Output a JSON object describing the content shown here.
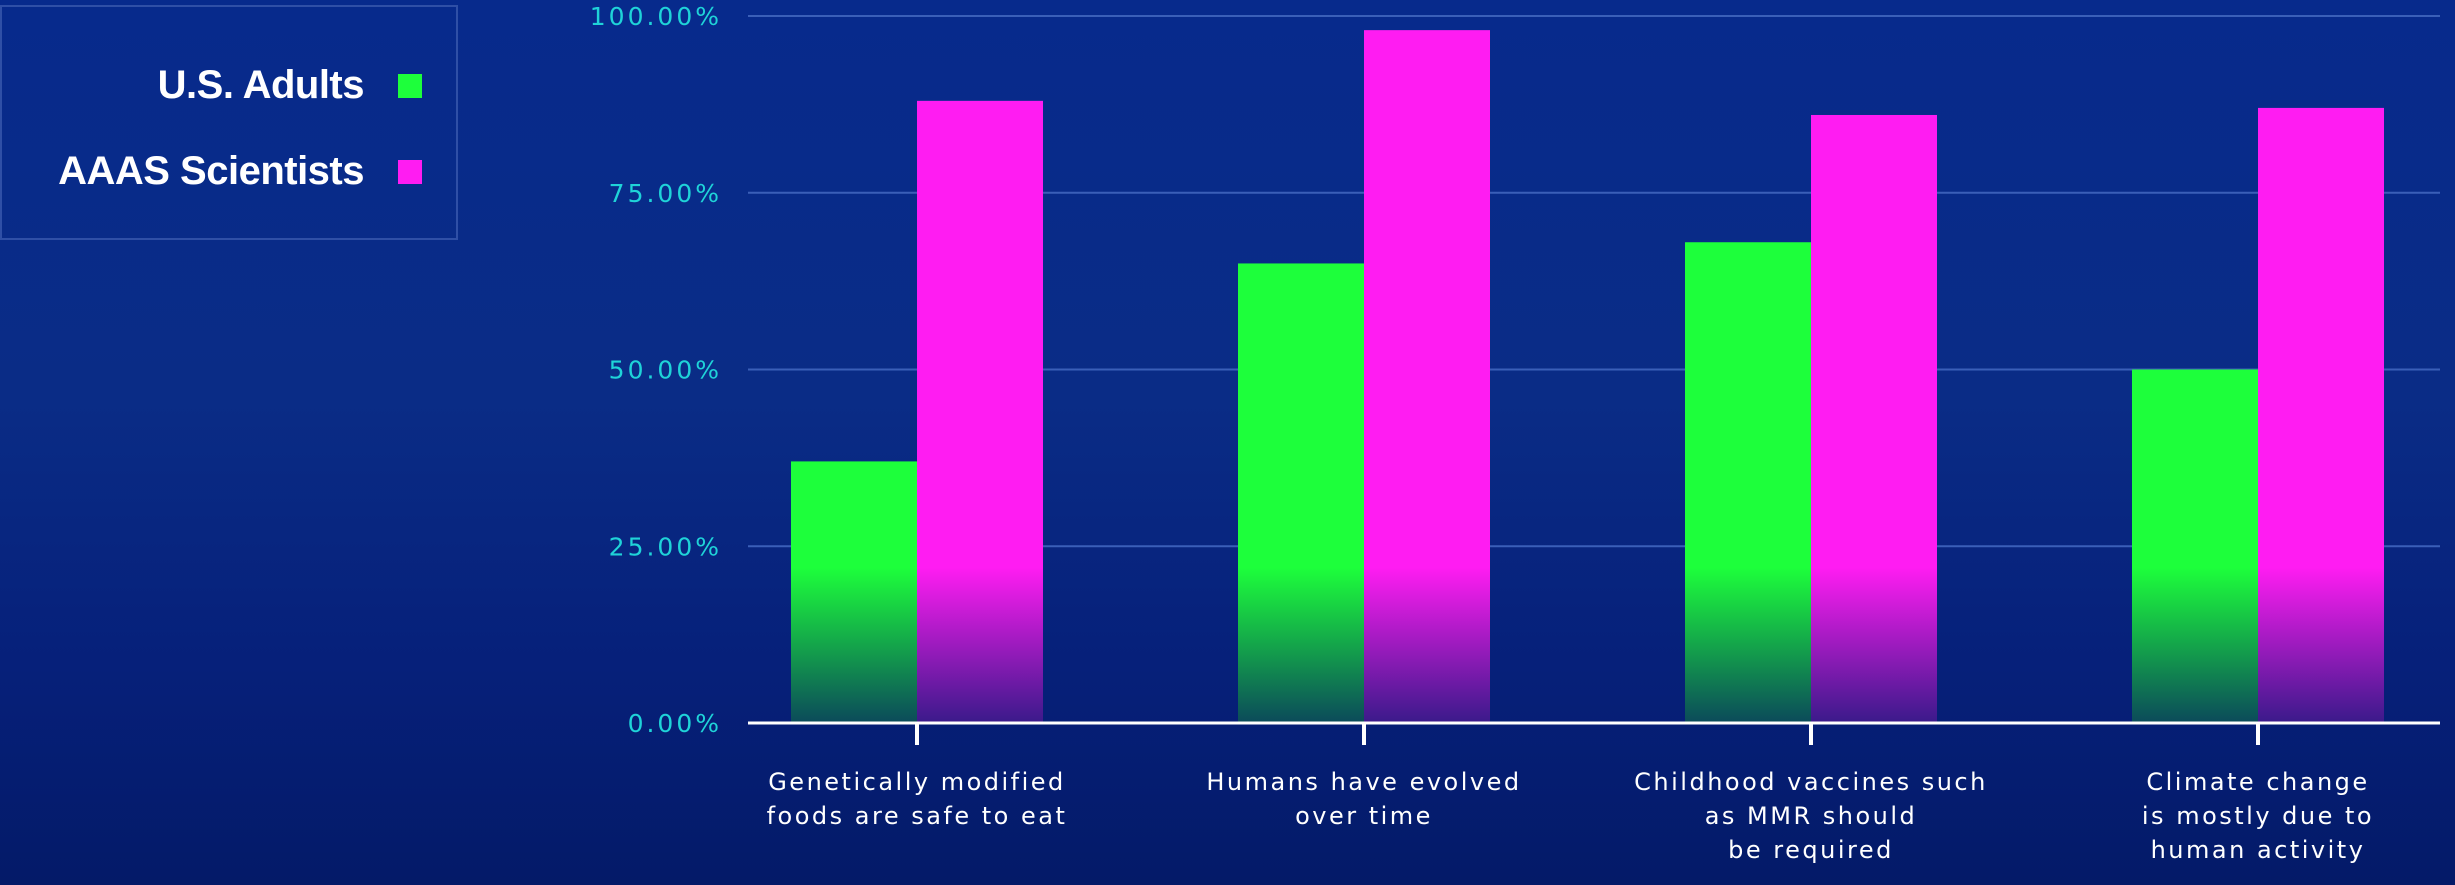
{
  "colors": {
    "background": "#0a2c86",
    "gridline": "#3a5fb8",
    "axis": "#ffffff",
    "tick_text": "#1fd3d8",
    "category_text": "#ffffff"
  },
  "legend": {
    "items": [
      {
        "label": "U.S. Adults",
        "color": "#1dff3b"
      },
      {
        "label": "AAAS Scientists",
        "color": "#ff1cf2"
      }
    ]
  },
  "chart_data": {
    "type": "bar",
    "title": "",
    "xlabel": "",
    "ylabel": "",
    "ylim": [
      0,
      100
    ],
    "grid": true,
    "legend_position": "top-left",
    "yticks": [
      "0.00%",
      "25.00%",
      "50.00%",
      "75.00%",
      "100.00%"
    ],
    "categories": [
      [
        "Genetically modified",
        "foods are safe to eat"
      ],
      [
        "Humans have evolved",
        "over time"
      ],
      [
        "Childhood vaccines such",
        "as MMR should",
        "be required"
      ],
      [
        "Climate change",
        "is mostly due to",
        "human activity"
      ]
    ],
    "series": [
      {
        "name": "U.S. Adults",
        "color": "#1dff3b",
        "values": [
          37,
          65,
          68,
          50
        ]
      },
      {
        "name": "AAAS Scientists",
        "color": "#ff1cf2",
        "values": [
          88,
          98,
          86,
          87
        ]
      }
    ]
  }
}
